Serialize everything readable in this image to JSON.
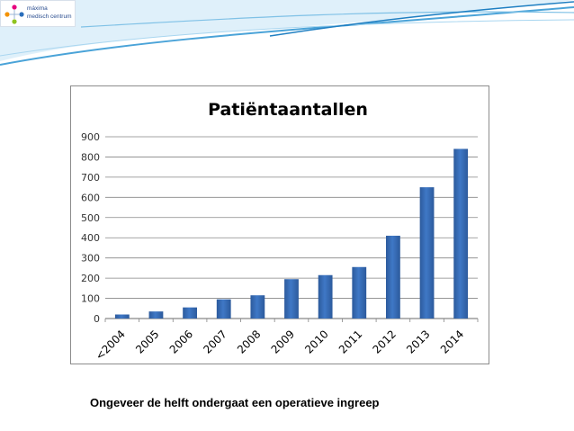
{
  "logo": {
    "line1": "máxima",
    "line2": "medisch centrum",
    "colors": [
      "#e6007e",
      "#2a6ebb",
      "#8fc31f",
      "#f39200"
    ]
  },
  "caption": "Ongeveer de helft ondergaat een operatieve ingreep",
  "colors": {
    "bar": "#3f78c6",
    "bar_dark": "#2c5a9c",
    "grid": "#868686",
    "header_wave": "#4aa3d8"
  },
  "chart_data": {
    "type": "bar",
    "title": "Patiëntaantallen",
    "categories": [
      "<2004",
      "2005",
      "2006",
      "2007",
      "2008",
      "2009",
      "2010",
      "2011",
      "2012",
      "2013",
      "2014"
    ],
    "values": [
      20,
      35,
      55,
      95,
      115,
      195,
      215,
      255,
      410,
      650,
      840
    ],
    "yticks": [
      0,
      100,
      200,
      300,
      400,
      500,
      600,
      700,
      800,
      900
    ],
    "ylim": [
      0,
      900
    ],
    "xlabel": "",
    "ylabel": "",
    "grid": true,
    "legend": "none"
  }
}
